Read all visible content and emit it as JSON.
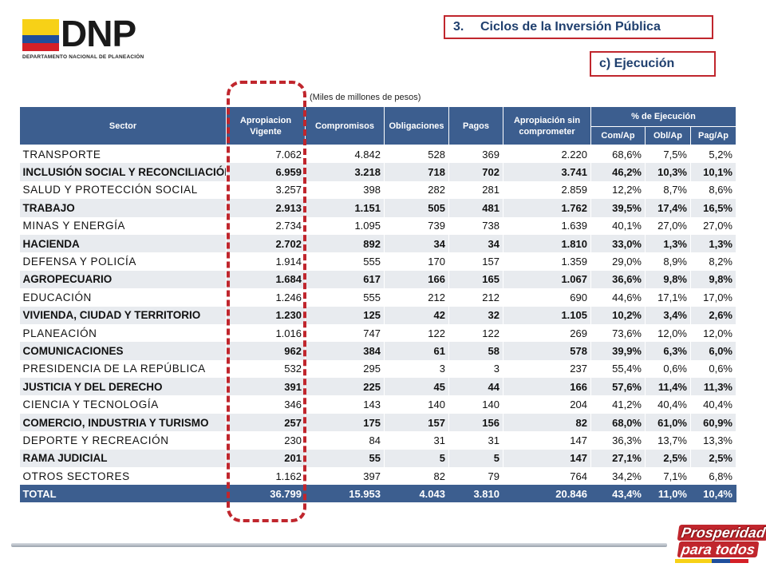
{
  "logo": {
    "name": "DNP",
    "subtitle": "DEPARTAMENTO NACIONAL DE PLANEACIÓN",
    "colors": [
      "#f7d117",
      "#1f4e9c",
      "#d42027"
    ]
  },
  "title": {
    "number": "3.",
    "text": "Ciclos de la Inversión Pública"
  },
  "subtitle": "c) Ejecución",
  "units": "(Miles de millones de pesos)",
  "table": {
    "headers": {
      "sector": "Sector",
      "apropiacion_line1": "Apropiacion",
      "apropiacion_line2": "Vigente",
      "compromisos": "Compromisos",
      "obligaciones": "Obligaciones",
      "pagos": "Pagos",
      "sin_comprometer_line1": "Apropiación sin",
      "sin_comprometer_line2": "comprometer",
      "ejecucion": "% de Ejecución",
      "com_ap": "Com/Ap",
      "obl_ap": "Obl/Ap",
      "pag_ap": "Pag/Ap"
    },
    "rows": [
      {
        "sector": "TRANSPORTE",
        "ap": "7.062",
        "com": "4.842",
        "obl": "528",
        "pag": "369",
        "sin": "2.220",
        "c": "68,6%",
        "o": "7,5%",
        "p": "5,2%"
      },
      {
        "sector": "INCLUSIÓN SOCIAL Y RECONCILIACIÓN",
        "ap": "6.959",
        "com": "3.218",
        "obl": "718",
        "pag": "702",
        "sin": "3.741",
        "c": "46,2%",
        "o": "10,3%",
        "p": "10,1%"
      },
      {
        "sector": "SALUD Y PROTECCIÓN SOCIAL",
        "ap": "3.257",
        "com": "398",
        "obl": "282",
        "pag": "281",
        "sin": "2.859",
        "c": "12,2%",
        "o": "8,7%",
        "p": "8,6%"
      },
      {
        "sector": "TRABAJO",
        "ap": "2.913",
        "com": "1.151",
        "obl": "505",
        "pag": "481",
        "sin": "1.762",
        "c": "39,5%",
        "o": "17,4%",
        "p": "16,5%"
      },
      {
        "sector": "MINAS Y ENERGÍA",
        "ap": "2.734",
        "com": "1.095",
        "obl": "739",
        "pag": "738",
        "sin": "1.639",
        "c": "40,1%",
        "o": "27,0%",
        "p": "27,0%"
      },
      {
        "sector": "HACIENDA",
        "ap": "2.702",
        "com": "892",
        "obl": "34",
        "pag": "34",
        "sin": "1.810",
        "c": "33,0%",
        "o": "1,3%",
        "p": "1,3%"
      },
      {
        "sector": "DEFENSA Y POLICÍA",
        "ap": "1.914",
        "com": "555",
        "obl": "170",
        "pag": "157",
        "sin": "1.359",
        "c": "29,0%",
        "o": "8,9%",
        "p": "8,2%"
      },
      {
        "sector": "AGROPECUARIO",
        "ap": "1.684",
        "com": "617",
        "obl": "166",
        "pag": "165",
        "sin": "1.067",
        "c": "36,6%",
        "o": "9,8%",
        "p": "9,8%"
      },
      {
        "sector": "EDUCACIÓN",
        "ap": "1.246",
        "com": "555",
        "obl": "212",
        "pag": "212",
        "sin": "690",
        "c": "44,6%",
        "o": "17,1%",
        "p": "17,0%"
      },
      {
        "sector": "VIVIENDA, CIUDAD Y TERRITORIO",
        "ap": "1.230",
        "com": "125",
        "obl": "42",
        "pag": "32",
        "sin": "1.105",
        "c": "10,2%",
        "o": "3,4%",
        "p": "2,6%"
      },
      {
        "sector": "PLANEACIÓN",
        "ap": "1.016",
        "com": "747",
        "obl": "122",
        "pag": "122",
        "sin": "269",
        "c": "73,6%",
        "o": "12,0%",
        "p": "12,0%"
      },
      {
        "sector": "COMUNICACIONES",
        "ap": "962",
        "com": "384",
        "obl": "61",
        "pag": "58",
        "sin": "578",
        "c": "39,9%",
        "o": "6,3%",
        "p": "6,0%"
      },
      {
        "sector": "PRESIDENCIA DE LA REPÚBLICA",
        "ap": "532",
        "com": "295",
        "obl": "3",
        "pag": "3",
        "sin": "237",
        "c": "55,4%",
        "o": "0,6%",
        "p": "0,6%"
      },
      {
        "sector": "JUSTICIA Y DEL DERECHO",
        "ap": "391",
        "com": "225",
        "obl": "45",
        "pag": "44",
        "sin": "166",
        "c": "57,6%",
        "o": "11,4%",
        "p": "11,3%"
      },
      {
        "sector": "CIENCIA Y TECNOLOGÍA",
        "ap": "346",
        "com": "143",
        "obl": "140",
        "pag": "140",
        "sin": "204",
        "c": "41,2%",
        "o": "40,4%",
        "p": "40,4%"
      },
      {
        "sector": "COMERCIO, INDUSTRIA Y TURISMO",
        "ap": "257",
        "com": "175",
        "obl": "157",
        "pag": "156",
        "sin": "82",
        "c": "68,0%",
        "o": "61,0%",
        "p": "60,9%"
      },
      {
        "sector": "DEPORTE Y RECREACIÓN",
        "ap": "230",
        "com": "84",
        "obl": "31",
        "pag": "31",
        "sin": "147",
        "c": "36,3%",
        "o": "13,7%",
        "p": "13,3%"
      },
      {
        "sector": "RAMA JUDICIAL",
        "ap": "201",
        "com": "55",
        "obl": "5",
        "pag": "5",
        "sin": "147",
        "c": "27,1%",
        "o": "2,5%",
        "p": "2,5%"
      },
      {
        "sector": "OTROS SECTORES",
        "ap": "1.162",
        "com": "397",
        "obl": "82",
        "pag": "79",
        "sin": "764",
        "c": "34,2%",
        "o": "7,1%",
        "p": "6,8%"
      }
    ],
    "total": {
      "sector": "TOTAL",
      "ap": "36.799",
      "com": "15.953",
      "obl": "4.043",
      "pag": "3.810",
      "sin": "20.846",
      "c": "43,4%",
      "o": "11,0%",
      "p": "10,4%"
    }
  },
  "footer_logo": {
    "line1": "Prosperidad",
    "line2": "para todos"
  },
  "colors": {
    "header_blue": "#3c5e8f",
    "accent_red": "#c0262d",
    "title_blue": "#1f3f6e",
    "row_alt": "#e8ebef"
  }
}
